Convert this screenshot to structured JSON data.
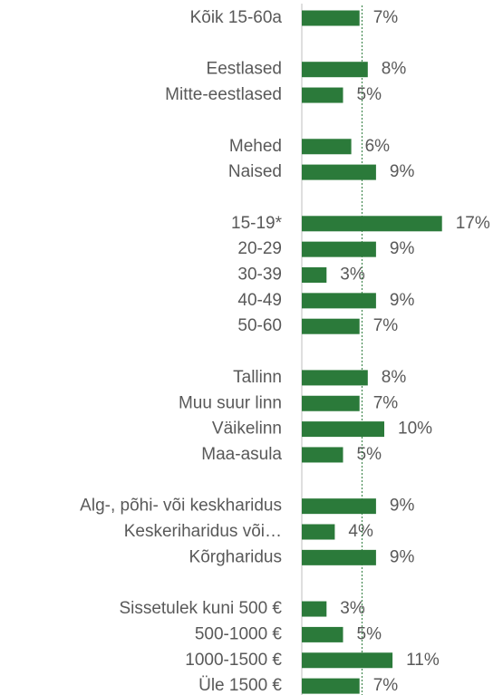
{
  "chart_data": {
    "type": "barh",
    "categories": [
      "Kõik 15-60a",
      null,
      "Eestlased",
      "Mitte-eestlased",
      null,
      "Mehed",
      "Naised",
      null,
      "15-19*",
      "20-29",
      "30-39",
      "40-49",
      "50-60",
      null,
      "Tallinn",
      "Muu suur linn",
      "Väikelinn",
      "Maa-asula",
      null,
      "Alg-, põhi- või keskharidus",
      "Keskeriharidus või…",
      "Kõrgharidus",
      null,
      "Sissetulek kuni 500 €",
      "500-1000 €",
      "1000-1500 €",
      "Üle 1500 €"
    ],
    "values": [
      7,
      null,
      8,
      5,
      null,
      6,
      9,
      null,
      17,
      9,
      3,
      9,
      7,
      null,
      8,
      7,
      10,
      5,
      null,
      9,
      4,
      9,
      null,
      3,
      5,
      11,
      7
    ],
    "value_labels": [
      "7%",
      null,
      "8%",
      "5%",
      null,
      "6%",
      "9%",
      null,
      "17%",
      "9%",
      "3%",
      "9%",
      "7%",
      null,
      "8%",
      "7%",
      "10%",
      "5%",
      null,
      "9%",
      "4%",
      "9%",
      null,
      "3%",
      "5%",
      "11%",
      "7%"
    ],
    "color": "#2b7a3a",
    "reference_line": 7.3
  }
}
